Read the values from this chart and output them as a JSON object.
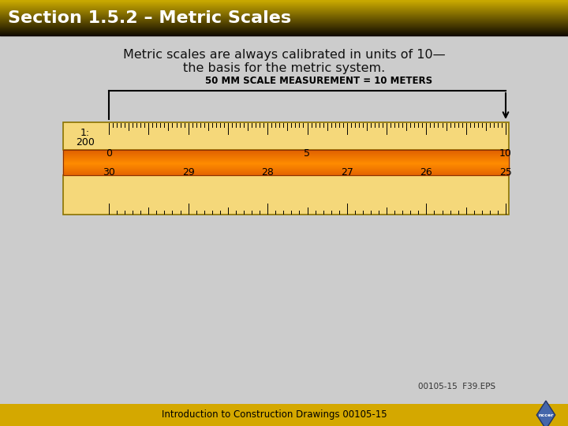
{
  "title": "Section 1.5.2 – Metric Scales",
  "title_text_color": "#ffffff",
  "body_bg": "#cccccc",
  "subtitle_line1": "Metric scales are always calibrated in units of 10—",
  "subtitle_line2": "the basis for the metric system.",
  "ruler_bg": "#f5d87a",
  "ruler_border": "#8b7300",
  "annotation_text": "50 MM SCALE MEASUREMENT = 10 METERS",
  "footer_bg": "#d4a800",
  "footer_text": "Introduction to Construction Drawings 00105-15",
  "caption": "00105-15  F39.EPS",
  "nccer_diamond_color": "#4466aa"
}
